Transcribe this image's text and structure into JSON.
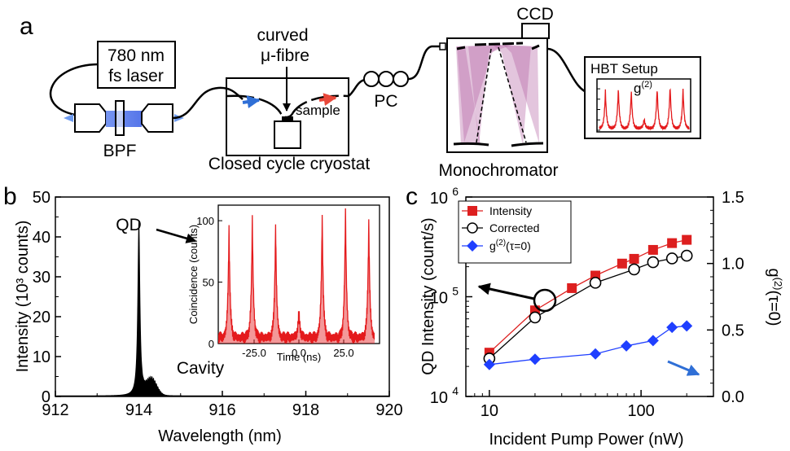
{
  "panel_a": {
    "letter": "a",
    "laser_line1": "780 nm",
    "laser_line2": "fs laser",
    "bpf": "BPF",
    "fibre_line1": "curved",
    "fibre_line2": "μ-fibre",
    "sample": "sample",
    "cryostat": "Closed cycle cryostat",
    "pc": "PC",
    "ccd": "CCD",
    "monochromator": "Monochromator",
    "hbt": "HBT Setup",
    "hbt_g2": "g(2)"
  },
  "colors": {
    "red": "#e41a1c",
    "red_marker": "#dd1f1f",
    "blue": "#1f3fff",
    "blue_arrow": "#2f6fd6",
    "black": "#000000",
    "mono_purple": "#b05a9e"
  },
  "chart_data": [
    {
      "id": "b",
      "type": "area",
      "panel_letter": "b",
      "xlabel": "Wavelength (nm)",
      "ylabel": "Intensity (10³ counts)",
      "xlim": [
        912,
        920
      ],
      "ylim": [
        0,
        50
      ],
      "xticks": [
        912,
        914,
        916,
        918,
        920
      ],
      "yticks": [
        0,
        10,
        20,
        30,
        40,
        50
      ],
      "annotations": [
        "QD",
        "Cavity"
      ],
      "peaks": [
        {
          "label": "QD",
          "center_nm": 914.0,
          "height": 43.5,
          "width_nm": 0.03
        },
        {
          "label": "Cavity",
          "center_nm": 914.3,
          "height": 4.0,
          "width_nm": 0.18
        }
      ],
      "inset": {
        "type": "line",
        "xlabel": "Time (ns)",
        "ylabel": "Coincidence (counts)",
        "xlim": [
          -45,
          45
        ],
        "ylim": [
          0,
          110
        ],
        "xticks": [
          -25.0,
          0.0,
          25.0
        ],
        "xtick_labels": [
          "-25.0",
          "0.0",
          "25.0"
        ],
        "yticks": [
          0,
          50,
          100
        ],
        "peak_times_ns": [
          -39,
          -26,
          -13,
          0,
          13,
          26,
          39
        ],
        "peak_heights": [
          90,
          98,
          92,
          22,
          100,
          105,
          95
        ],
        "baseline": 5,
        "peak_width_ns": 1.1
      }
    },
    {
      "id": "c",
      "type": "line",
      "panel_letter": "c",
      "xlabel": "Incident Pump Power (nW)",
      "ylabel": "QD Intensity (count/s)",
      "y2label": "g(2)(τ=0)",
      "xscale": "log",
      "yscale": "log",
      "xlim": [
        7,
        300
      ],
      "ylim": [
        10000,
        1000000
      ],
      "y2lim": [
        0.0,
        1.5
      ],
      "xtick_labels": [
        "10",
        "100"
      ],
      "ytick_labels": [
        "10",
        "10",
        "10"
      ],
      "ytick_exponents": [
        "4",
        "5",
        "6"
      ],
      "y2ticks": [
        "0.0",
        "0.5",
        "1.0",
        "1.5"
      ],
      "legend_position": "top-left",
      "series": [
        {
          "name": "Intensity",
          "axis": "left",
          "marker": "square",
          "color": "#dd1f1f",
          "x": [
            10,
            20,
            35,
            50,
            75,
            90,
            120,
            160,
            200
          ],
          "y": [
            27500,
            73000,
            122000,
            163000,
            215000,
            240000,
            295000,
            345000,
            372000
          ]
        },
        {
          "name": "Corrected",
          "axis": "left",
          "marker": "open-circle",
          "color": "#000000",
          "x": [
            10,
            20,
            50,
            90,
            120,
            160,
            200
          ],
          "y": [
            24000,
            62000,
            138000,
            188000,
            222000,
            242000,
            258000
          ]
        },
        {
          "name": "g(2)(τ=0)",
          "axis": "right",
          "marker": "diamond",
          "color": "#1f3fff",
          "x": [
            10,
            20,
            50,
            80,
            120,
            160,
            200
          ],
          "y": [
            0.24,
            0.28,
            0.32,
            0.38,
            0.42,
            0.52,
            0.53
          ]
        }
      ]
    }
  ]
}
